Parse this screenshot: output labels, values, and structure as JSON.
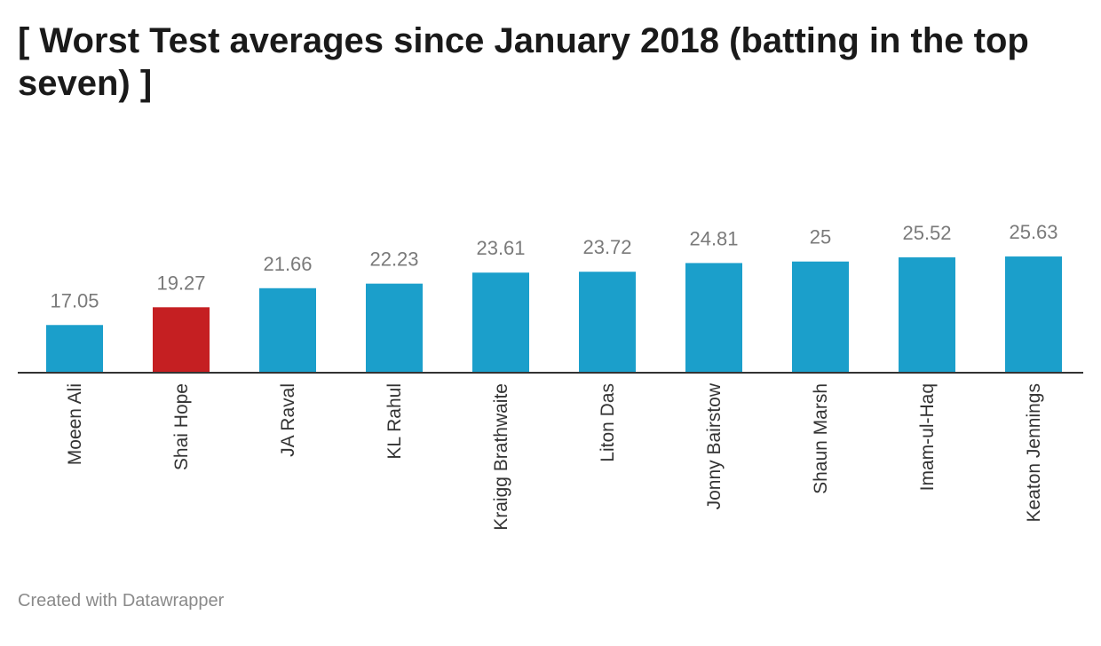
{
  "title": "[ Worst Test averages since January 2018 (batting in the top seven) ]",
  "footer": "Created with Datawrapper",
  "colors": {
    "bar_default": "#1b9fcb",
    "bar_highlight": "#c51f22",
    "axis_line": "#333333"
  },
  "chart_data": {
    "type": "bar",
    "categories": [
      "Moeen Ali",
      "Shai Hope",
      "JA Raval",
      "KL Rahul",
      "Kraigg Brathwaite",
      "Liton Das",
      "Jonny Bairstow",
      "Shaun Marsh",
      "Imam-ul-Haq",
      "Keaton Jennings"
    ],
    "values": [
      17.05,
      19.27,
      21.66,
      22.23,
      23.61,
      23.72,
      24.81,
      25,
      25.52,
      25.63
    ],
    "value_labels": [
      "17.05",
      "19.27",
      "21.66",
      "22.23",
      "23.61",
      "23.72",
      "24.81",
      "25",
      "25.52",
      "25.63"
    ],
    "highlight": "Shai Hope",
    "title": "[ Worst Test averages since January 2018 (batting in the top seven) ]",
    "xlabel": "",
    "ylabel": "",
    "grid": false,
    "legend": "none"
  }
}
